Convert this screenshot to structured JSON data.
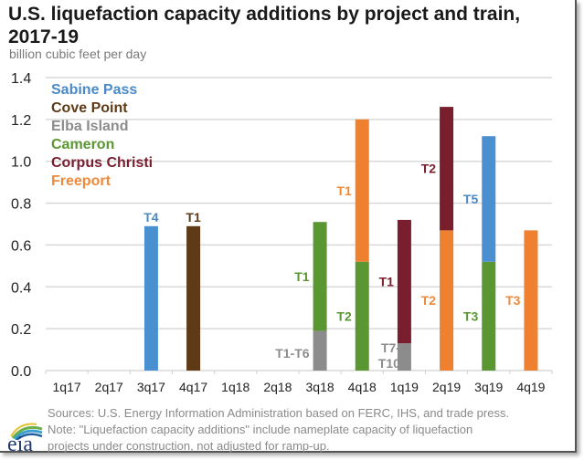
{
  "chart_data": {
    "type": "bar",
    "stacked": true,
    "title": "U.S. liquefaction capacity additions by project and train, 2017-19",
    "ylabel": "billion cubic feet per day",
    "xlabel": "",
    "ylim": [
      0,
      1.4
    ],
    "yticks": [
      "0.0",
      "0.2",
      "0.4",
      "0.6",
      "0.8",
      "1.0",
      "1.2",
      "1.4"
    ],
    "ytick_values": [
      0,
      0.2,
      0.4,
      0.6,
      0.8,
      1.0,
      1.2,
      1.4
    ],
    "grid": true,
    "legend_placement": "top-left",
    "categories": [
      "1q17",
      "2q17",
      "3q17",
      "4q17",
      "1q18",
      "2q18",
      "3q18",
      "4q18",
      "1q19",
      "2q19",
      "3q19",
      "4q19"
    ],
    "series": [
      {
        "name": "Sabine Pass",
        "color": "#4a90d0",
        "label_color": "#4a8ac8",
        "values": [
          0,
          0,
          0.69,
          0,
          0,
          0,
          0,
          0,
          0,
          0,
          0.6,
          0
        ],
        "trains": [
          "",
          "",
          "T4",
          "",
          "",
          "",
          "",
          "",
          "",
          "",
          "T5",
          ""
        ]
      },
      {
        "name": "Cove Point",
        "color": "#5e3a16",
        "label_color": "#5e3a16",
        "values": [
          0,
          0,
          0,
          0.69,
          0,
          0,
          0,
          0,
          0,
          0,
          0,
          0
        ],
        "trains": [
          "",
          "",
          "",
          "T1",
          "",
          "",
          "",
          "",
          "",
          "",
          "",
          ""
        ]
      },
      {
        "name": "Elba Island",
        "color": "#8c8c8c",
        "label_color": "#8c8c8c",
        "values": [
          0,
          0,
          0,
          0,
          0,
          0,
          0.19,
          0,
          0.13,
          0,
          0,
          0
        ],
        "trains": [
          "",
          "",
          "",
          "",
          "",
          "",
          "T1-T6",
          "",
          "T7-\nT10",
          "",
          "",
          ""
        ]
      },
      {
        "name": "Cameron",
        "color": "#5a9632",
        "label_color": "#5a9632",
        "values": [
          0,
          0,
          0,
          0,
          0,
          0,
          0.52,
          0.52,
          0,
          0,
          0.52,
          0
        ],
        "trains": [
          "",
          "",
          "",
          "",
          "",
          "",
          "T1",
          "T2",
          "",
          "",
          "T3",
          ""
        ]
      },
      {
        "name": "Corpus Christi",
        "color": "#7a1e2e",
        "label_color": "#7a1e2e",
        "values": [
          0,
          0,
          0,
          0,
          0,
          0,
          0,
          0,
          0.59,
          0.59,
          0,
          0
        ],
        "trains": [
          "",
          "",
          "",
          "",
          "",
          "",
          "",
          "",
          "T1",
          "T2",
          "",
          ""
        ]
      },
      {
        "name": "Freeport",
        "color": "#ee8030",
        "label_color": "#ee8a3c",
        "values": [
          0,
          0,
          0,
          0,
          0,
          0,
          0,
          0.68,
          0,
          0.67,
          0,
          0.67
        ],
        "trains": [
          "",
          "",
          "",
          "",
          "",
          "",
          "",
          "T1",
          "",
          "T2",
          "",
          "T3"
        ]
      }
    ],
    "stack_order": {
      "3q17": [
        "Sabine Pass"
      ],
      "4q17": [
        "Cove Point"
      ],
      "3q18": [
        "Elba Island",
        "Cameron"
      ],
      "4q18": [
        "Cameron",
        "Freeport"
      ],
      "1q19": [
        "Elba Island",
        "Corpus Christi"
      ],
      "2q19": [
        "Freeport",
        "Corpus Christi"
      ],
      "3q19": [
        "Cameron",
        "Sabine Pass"
      ],
      "4q19": [
        "Freeport"
      ]
    }
  },
  "header": {
    "title": "U.S. liquefaction capacity additions by project and train, 2017-19",
    "units": "billion cubic feet per day"
  },
  "footer": {
    "sources": "Sources:  U.S. Energy Information Administration based on FERC, IHS, and trade press.",
    "note_line1": "Note: \"Liquefaction capacity additions\" include nameplate capacity of liquefaction",
    "note_line2": "projects under construction, not adjusted for ramp-up.",
    "logo_text": "eia"
  }
}
